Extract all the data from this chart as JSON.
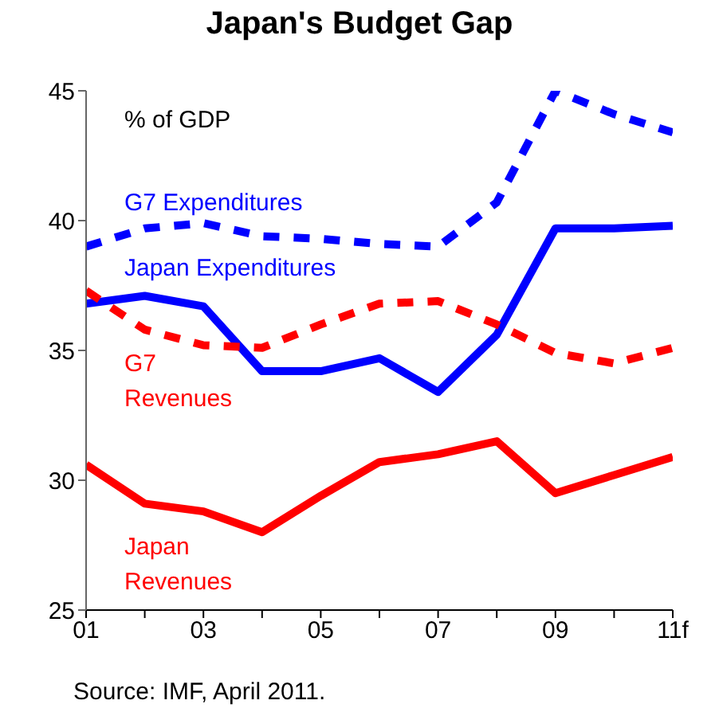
{
  "chart_data": {
    "type": "line",
    "title": "Japan's Budget Gap",
    "ylabel": "% of GDP",
    "annotations": [
      "Source: IMF, April 2011."
    ],
    "x": [
      1,
      2,
      3,
      4,
      5,
      6,
      7,
      8,
      9,
      10,
      11
    ],
    "xlim": [
      1,
      11
    ],
    "xticks": [
      {
        "value": 1,
        "label": "01"
      },
      {
        "value": 2,
        "label": null
      },
      {
        "value": 3,
        "label": "03"
      },
      {
        "value": 4,
        "label": null
      },
      {
        "value": 5,
        "label": "05"
      },
      {
        "value": 6,
        "label": null
      },
      {
        "value": 7,
        "label": "07"
      },
      {
        "value": 8,
        "label": null
      },
      {
        "value": 9,
        "label": "09"
      },
      {
        "value": 10,
        "label": null
      },
      {
        "value": 11,
        "label": "11f"
      }
    ],
    "ylim": [
      25,
      45
    ],
    "yticks": [
      25,
      30,
      35,
      40,
      45
    ],
    "marker": "none",
    "series": [
      {
        "name": "Japan Expenditures",
        "color": "#0000ff",
        "line_style": "solid",
        "values": [
          36.8,
          37.1,
          36.7,
          34.2,
          34.2,
          34.7,
          33.4,
          35.6,
          39.7,
          39.7,
          39.8
        ]
      },
      {
        "name": "G7 Expenditures",
        "color": "#0000ff",
        "line_style": "dashed",
        "values": [
          39.0,
          39.7,
          39.9,
          39.4,
          39.3,
          39.1,
          39.0,
          40.7,
          45.0,
          44.1,
          43.4
        ]
      },
      {
        "name": "Japan Revenues",
        "color": "#ff0000",
        "line_style": "solid",
        "values": [
          30.6,
          29.1,
          28.8,
          28.0,
          29.4,
          30.7,
          31.0,
          31.5,
          29.5,
          30.2,
          30.9
        ]
      },
      {
        "name": "G7 Revenues",
        "color": "#ff0000",
        "line_style": "dashed",
        "values": [
          37.3,
          35.8,
          35.2,
          35.1,
          36.0,
          36.8,
          36.9,
          36.0,
          34.9,
          34.5,
          35.1
        ]
      }
    ]
  }
}
